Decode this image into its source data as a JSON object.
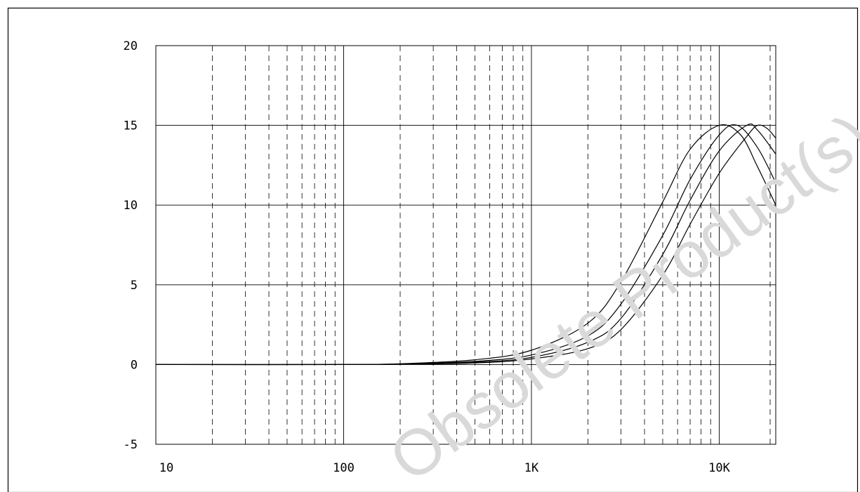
{
  "chart_data": {
    "type": "line",
    "title": "",
    "xlabel": "",
    "ylabel": "",
    "x_scale": "log",
    "xlim": [
      10,
      20000
    ],
    "ylim": [
      -5,
      20
    ],
    "grid": true,
    "x_tick_labels": [
      {
        "value": 10,
        "label": "10"
      },
      {
        "value": 100,
        "label": "100"
      },
      {
        "value": 1000,
        "label": "1K"
      },
      {
        "value": 10000,
        "label": "10K"
      }
    ],
    "y_ticks": [
      -5,
      0,
      5,
      10,
      15,
      20
    ],
    "series": [
      {
        "x": [
          10,
          100,
          200,
          500,
          1000,
          2000,
          3000,
          5000,
          7000,
          10000,
          13000,
          16000,
          20000
        ],
        "values": [
          0,
          0,
          0.05,
          0.3,
          0.9,
          2.6,
          5.2,
          10.2,
          13.5,
          15.0,
          14.4,
          12.4,
          10.0
        ]
      },
      {
        "x": [
          10,
          100,
          200,
          500,
          1000,
          2000,
          3000,
          5000,
          7000,
          10000,
          12500,
          16000,
          20000
        ],
        "values": [
          0,
          0,
          0.04,
          0.2,
          0.6,
          1.8,
          3.8,
          8.1,
          11.6,
          14.4,
          15.0,
          13.6,
          11.4
        ]
      },
      {
        "x": [
          10,
          100,
          200,
          500,
          1000,
          2000,
          3000,
          5000,
          7000,
          10000,
          14000,
          16000,
          20000
        ],
        "values": [
          0,
          0,
          0.03,
          0.15,
          0.45,
          1.4,
          2.9,
          6.9,
          10.3,
          13.4,
          15.0,
          14.7,
          13.2
        ]
      },
      {
        "x": [
          10,
          100,
          200,
          500,
          1000,
          2000,
          3000,
          5000,
          7000,
          10000,
          14000,
          16000,
          18000,
          20000
        ],
        "values": [
          0,
          0,
          0.02,
          0.1,
          0.35,
          1.0,
          2.2,
          5.6,
          8.8,
          12.0,
          14.3,
          15.0,
          14.8,
          14.2
        ]
      }
    ]
  },
  "watermark": {
    "text": "Obsolete Product(s)"
  },
  "colors": {
    "axis": "#000000",
    "grid": "#000000",
    "curve": "#000000",
    "watermark": "#d9d9d9"
  }
}
